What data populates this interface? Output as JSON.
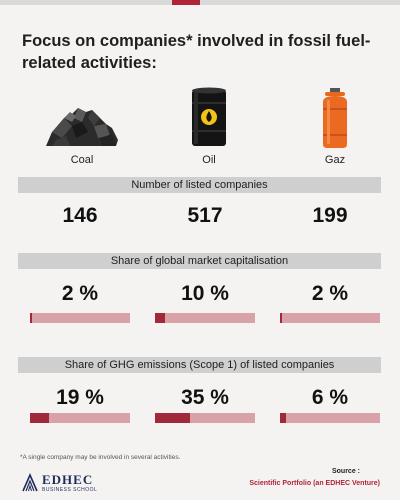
{
  "colors": {
    "bar_dark": "#a02a3a",
    "bar_light": "#d9a2a9",
    "band_gray": "#cfcfcf",
    "accent": "#b0243a",
    "top_bar": "#d9d9d9"
  },
  "title": "Focus on companies* involved in fossil fuel-related activities:",
  "icons": [
    {
      "name": "coal-icon",
      "label": "Coal"
    },
    {
      "name": "oil-barrel-icon",
      "label": "Oil"
    },
    {
      "name": "gas-cylinder-icon",
      "label": "Gaz"
    }
  ],
  "chart_data": [
    {
      "type": "table",
      "title": "Number of listed companies",
      "categories": [
        "Coal",
        "Oil",
        "Gaz"
      ],
      "values": [
        146,
        517,
        199
      ],
      "display": [
        "146",
        "517",
        "199"
      ]
    },
    {
      "type": "bar",
      "title": "Share of global market capitalisation",
      "categories": [
        "Coal",
        "Oil",
        "Gaz"
      ],
      "values": [
        2,
        10,
        2
      ],
      "display": [
        "2 %",
        "10 %",
        "2 %"
      ],
      "ylim": [
        0,
        100
      ]
    },
    {
      "type": "bar",
      "title": "Share of GHG emissions (Scope 1) of listed companies",
      "categories": [
        "Coal",
        "Oil",
        "Gaz"
      ],
      "values": [
        19,
        35,
        6
      ],
      "display": [
        "19 %",
        "35 %",
        "6 %"
      ],
      "ylim": [
        0,
        100
      ]
    }
  ],
  "footnote": "*A single company may be involved in several activities.",
  "source": {
    "label": "Source :",
    "value": "Scientific Portfolio (an EDHEC Venture)"
  },
  "logo": {
    "name": "EDHEC",
    "sub": "BUSINESS SCHOOL"
  }
}
